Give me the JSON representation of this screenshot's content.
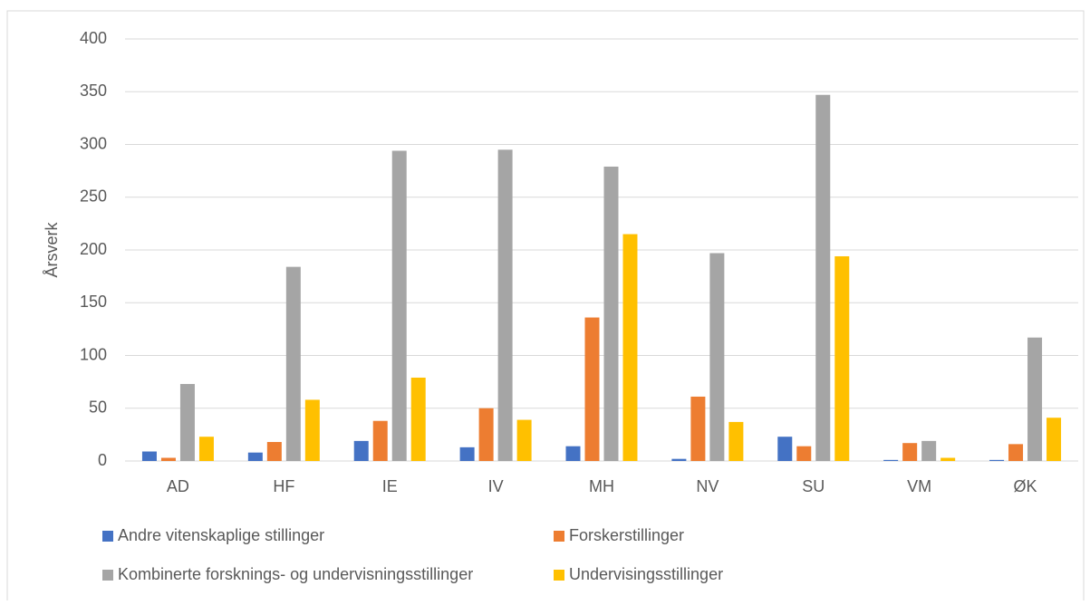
{
  "chart_data": {
    "type": "bar",
    "y_label": "Årsverk",
    "categories": [
      "AD",
      "HF",
      "IE",
      "IV",
      "MH",
      "NV",
      "SU",
      "VM",
      "ØK"
    ],
    "series": [
      {
        "name": "Andre vitenskaplige stillinger",
        "color": "#4472c4",
        "values": [
          9,
          8,
          19,
          13,
          14,
          2,
          23,
          1,
          1
        ]
      },
      {
        "name": "Forskerstillinger",
        "color": "#ed7d31",
        "values": [
          3,
          18,
          38,
          50,
          136,
          61,
          14,
          17,
          16
        ]
      },
      {
        "name": "Kombinerte forsknings- og undervisningsstillinger",
        "color": "#a5a5a5",
        "values": [
          73,
          184,
          294,
          295,
          279,
          197,
          347,
          19,
          117
        ]
      },
      {
        "name": "Undervisingsstillinger",
        "color": "#ffc000",
        "values": [
          23,
          58,
          79,
          39,
          215,
          37,
          194,
          3,
          41
        ]
      }
    ],
    "ylim": [
      0,
      400
    ],
    "yticks": [
      0,
      50,
      100,
      150,
      200,
      250,
      300,
      350,
      400
    ],
    "grid": true,
    "legend": "bottom"
  }
}
